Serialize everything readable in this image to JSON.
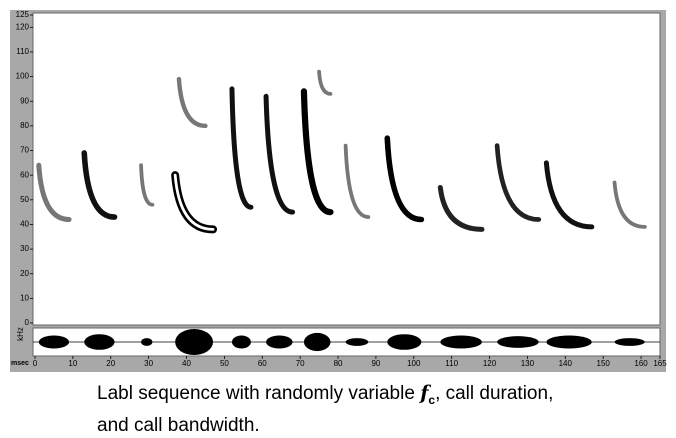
{
  "chart_data": {
    "type": "spectrogram",
    "ylabel": "kHz",
    "xlabel": "msec",
    "ylim": [
      0,
      125
    ],
    "yticks": [
      0,
      10,
      20,
      30,
      40,
      50,
      60,
      70,
      80,
      90,
      100,
      110,
      120,
      125
    ],
    "xlim": [
      0,
      165
    ],
    "xticks": [
      0,
      10,
      20,
      30,
      40,
      50,
      60,
      70,
      80,
      90,
      100,
      110,
      120,
      130,
      140,
      150,
      160,
      165
    ],
    "calls": [
      {
        "t_start": 1,
        "t_end": 9,
        "f_start": 64,
        "f_end": 42,
        "amplitude": 0.5,
        "color": "#777777"
      },
      {
        "t_start": 13,
        "t_end": 21,
        "f_start": 69,
        "f_end": 43,
        "amplitude": 0.6,
        "color": "#111111"
      },
      {
        "t_start": 28,
        "t_end": 31,
        "f_start": 64,
        "f_end": 48,
        "amplitude": 0.3,
        "color": "#777777"
      },
      {
        "t_start": 37,
        "t_end": 47,
        "f_start": 60,
        "f_end": 38,
        "amplitude": 1,
        "color": "#000000"
      },
      {
        "t_start": 38,
        "t_end": 45,
        "f_start": 99,
        "f_end": 80,
        "amplitude": 0.4,
        "color": "#777777"
      },
      {
        "t_start": 52,
        "t_end": 57,
        "f_start": 95,
        "f_end": 47,
        "amplitude": 0.5,
        "color": "#111111"
      },
      {
        "t_start": 61,
        "t_end": 68,
        "f_start": 92,
        "f_end": 45,
        "amplitude": 0.5,
        "color": "#111111"
      },
      {
        "t_start": 71,
        "t_end": 78,
        "f_start": 94,
        "f_end": 45,
        "amplitude": 0.7,
        "color": "#000000"
      },
      {
        "t_start": 75,
        "t_end": 78,
        "f_start": 102,
        "f_end": 93,
        "amplitude": 0.3,
        "color": "#777777"
      },
      {
        "t_start": 82,
        "t_end": 88,
        "f_start": 72,
        "f_end": 43,
        "amplitude": 0.3,
        "color": "#777777"
      },
      {
        "t_start": 93,
        "t_end": 102,
        "f_start": 75,
        "f_end": 42,
        "amplitude": 0.6,
        "color": "#000000"
      },
      {
        "t_start": 107,
        "t_end": 118,
        "f_start": 55,
        "f_end": 38,
        "amplitude": 0.5,
        "color": "#222222"
      },
      {
        "t_start": 122,
        "t_end": 133,
        "f_start": 72,
        "f_end": 42,
        "amplitude": 0.45,
        "color": "#222222"
      },
      {
        "t_start": 135,
        "t_end": 147,
        "f_start": 65,
        "f_end": 39,
        "amplitude": 0.5,
        "color": "#111111"
      },
      {
        "t_start": 153,
        "t_end": 161,
        "f_start": 57,
        "f_end": 39,
        "amplitude": 0.3,
        "color": "#777777"
      }
    ],
    "caption": {
      "before": "Labl sequence with randomly variable ",
      "symbol": "f",
      "subscript": "c",
      "after": ", call duration, and call bandwidth."
    }
  }
}
